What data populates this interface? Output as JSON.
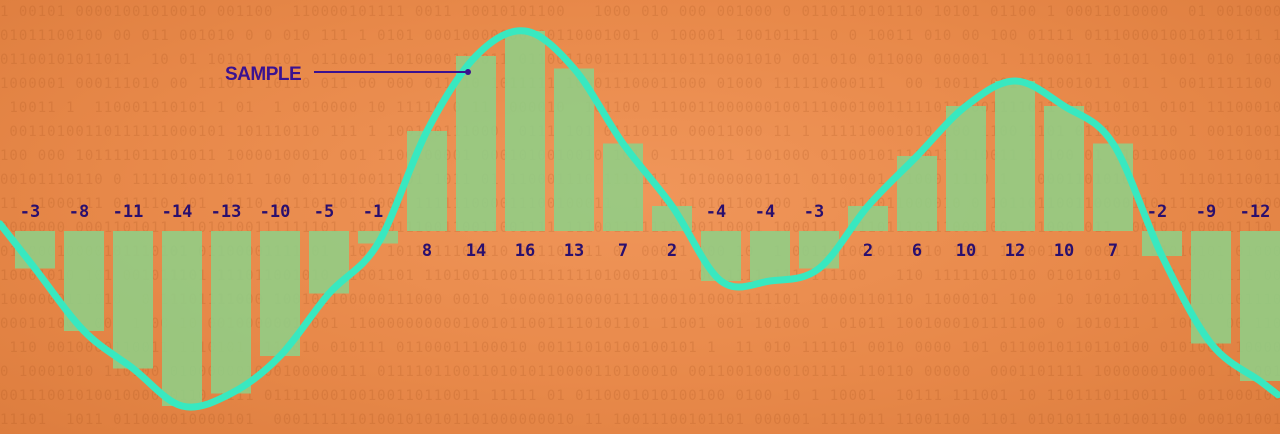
{
  "chart_data": {
    "type": "bar",
    "values": [
      -3,
      -8,
      -11,
      -14,
      -13,
      -10,
      -5,
      -1,
      8,
      14,
      16,
      13,
      7,
      2,
      -4,
      -4,
      -3,
      2,
      6,
      10,
      12,
      10,
      7,
      -2,
      -9,
      -12
    ],
    "ylim": [
      -17,
      17
    ],
    "grid": false,
    "legend": "none",
    "annotation": {
      "text": "SAMPLE"
    }
  },
  "colors": {
    "background": "#e8894a",
    "bar": "#8fcf86",
    "curve": "#38e8c0",
    "label": "#2a0f6e",
    "annotation": "#3a1290"
  },
  "background_pattern": "binary-digits"
}
